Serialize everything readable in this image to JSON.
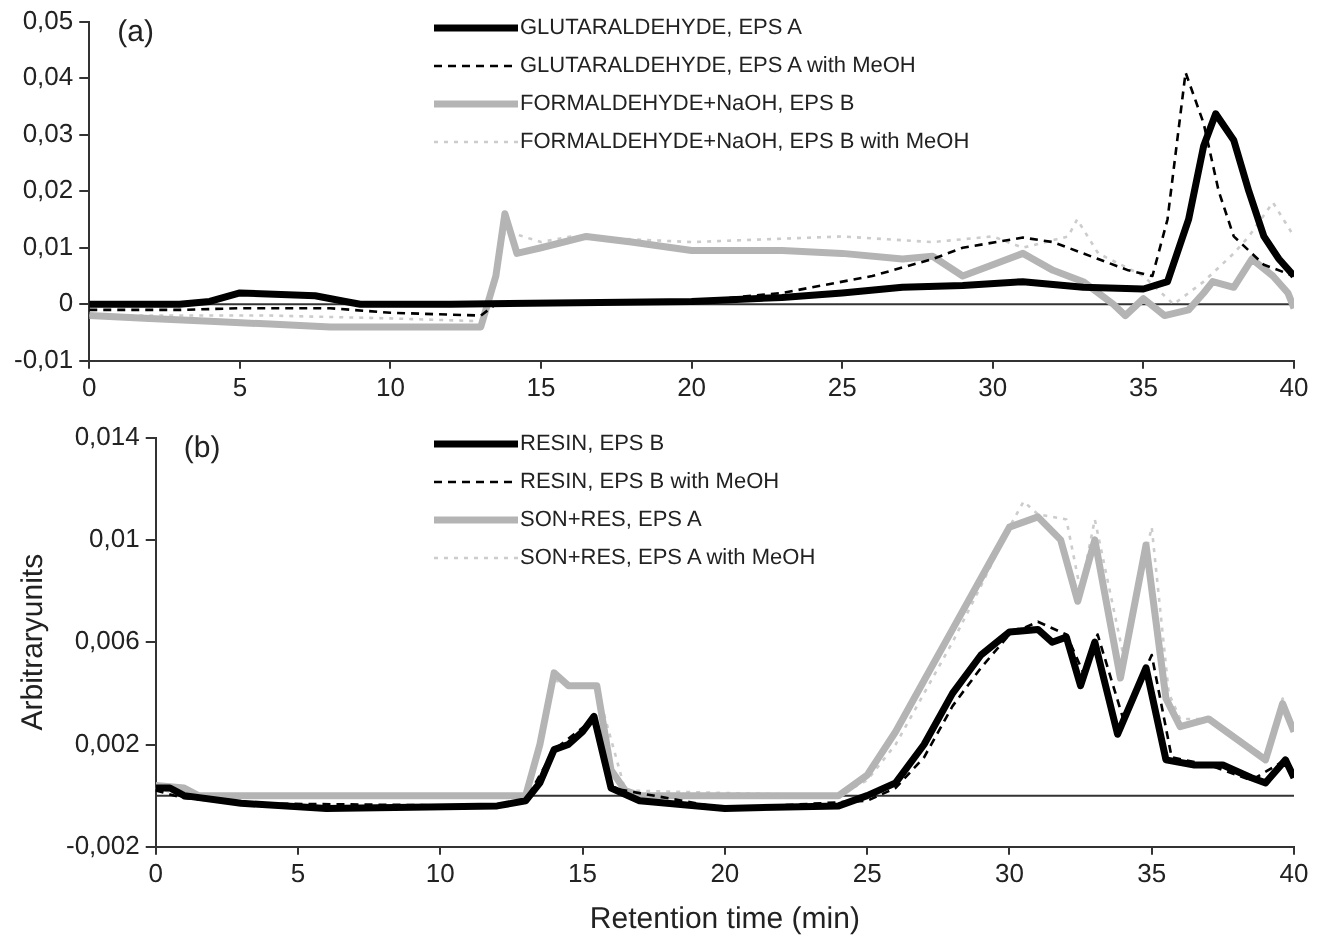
{
  "chart_data": [
    {
      "type": "line",
      "title": "(a)",
      "xlim": [
        0,
        40
      ],
      "xticks": [
        0,
        5,
        10,
        15,
        20,
        25,
        30,
        35,
        40
      ],
      "ylim": [
        -0.01,
        0.05
      ],
      "yticks": [
        {
          "value": 0.05,
          "label": "0,05"
        },
        {
          "value": 0.04,
          "label": "0,04"
        },
        {
          "value": 0.03,
          "label": "0,03"
        },
        {
          "value": 0.02,
          "label": "0,02"
        },
        {
          "value": 0.01,
          "label": "0,01"
        },
        0,
        {
          "value": -0.01,
          "label": "-0,01"
        }
      ],
      "grid": false,
      "legend": "top",
      "marker": "none",
      "ref_lines": [
        {
          "axis": "y",
          "value": 0,
          "color": "#333333"
        }
      ],
      "series": [
        {
          "name": "GLUTARALDEHYDE, EPS A",
          "color": "#000000",
          "line_style": "solid",
          "x": [
            0,
            3,
            4,
            5,
            7.5,
            8.5,
            9,
            12,
            20,
            23,
            25,
            27,
            29,
            31,
            32,
            33,
            35,
            35.8,
            36.5,
            37,
            37.4,
            38,
            38.5,
            39,
            39.5,
            40
          ],
          "values": [
            0,
            0,
            0.0005,
            0.002,
            0.0015,
            0.0005,
            0,
            0,
            0.0005,
            0.0012,
            0.002,
            0.003,
            0.0033,
            0.004,
            0.0035,
            0.003,
            0.0027,
            0.004,
            0.015,
            0.028,
            0.0337,
            0.029,
            0.02,
            0.012,
            0.008,
            0.005
          ]
        },
        {
          "name": "GLUTARALDEHYDE, EPS A with MeOH",
          "color": "#000000",
          "line_style": "dashed",
          "x": [
            0,
            3,
            5,
            8,
            10,
            13,
            13.5,
            15,
            20,
            23,
            26,
            28,
            29,
            31,
            32,
            33.5,
            34.5,
            35.3,
            35.8,
            36.4,
            37,
            37.5,
            38,
            39,
            40
          ],
          "values": [
            -0.001,
            -0.001,
            -0.0007,
            -0.0007,
            -0.0015,
            -0.002,
            0,
            0,
            0.0005,
            0.002,
            0.005,
            0.008,
            0.01,
            0.0118,
            0.011,
            0.008,
            0.006,
            0.005,
            0.015,
            0.041,
            0.032,
            0.02,
            0.012,
            0.007,
            0.005
          ]
        },
        {
          "name": "FORMALDEHYDE+NaOH, EPS B",
          "color": "#b4b4b4",
          "line_style": "solid",
          "x": [
            0,
            2,
            4,
            6,
            8,
            13,
            13.5,
            13.8,
            14.2,
            15,
            16.5,
            18,
            20,
            23,
            25,
            27,
            28,
            29,
            30,
            31,
            32,
            33,
            34,
            34.4,
            35,
            35.7,
            36.5,
            37,
            37.3,
            38,
            38.6,
            39.3,
            39.8,
            40
          ],
          "values": [
            -0.002,
            -0.0025,
            -0.003,
            -0.0035,
            -0.004,
            -0.004,
            0.005,
            0.016,
            0.009,
            0.01,
            0.012,
            0.011,
            0.0095,
            0.0095,
            0.009,
            0.008,
            0.0085,
            0.005,
            0.007,
            0.009,
            0.006,
            0.004,
            0,
            -0.002,
            0.001,
            -0.002,
            -0.001,
            0.002,
            0.004,
            0.003,
            0.008,
            0.005,
            0.002,
            -0.0007
          ]
        },
        {
          "name": "FORMALDEHYDE+NaOH, EPS B with MeOH",
          "color": "#cccccc",
          "line_style": "dotted",
          "x": [
            0,
            3,
            6,
            10,
            13,
            13.5,
            13.8,
            15,
            16,
            20,
            25,
            28,
            30,
            31,
            32.5,
            32.8,
            33.5,
            35,
            36,
            37,
            38,
            38.5,
            39.3,
            40
          ],
          "values": [
            -0.002,
            -0.002,
            -0.002,
            -0.0025,
            -0.003,
            0.005,
            0.013,
            0.011,
            0.012,
            0.011,
            0.012,
            0.011,
            0.012,
            0.01,
            0.012,
            0.015,
            0.009,
            0.005,
            0,
            0.004,
            0.009,
            0.012,
            0.018,
            0.012
          ]
        }
      ]
    },
    {
      "type": "line",
      "title": "(b)",
      "xlabel": "Retention time (min)",
      "ylabel": "Arbitraryunits",
      "xlim": [
        0,
        40
      ],
      "xticks": [
        0,
        5,
        10,
        15,
        20,
        25,
        30,
        35,
        40
      ],
      "ylim": [
        -0.002,
        0.014
      ],
      "yticks": [
        {
          "value": 0.014,
          "label": "0,014"
        },
        {
          "value": 0.01,
          "label": "0,01"
        },
        {
          "value": 0.006,
          "label": "0,006"
        },
        {
          "value": 0.002,
          "label": "0,002"
        },
        {
          "value": -0.002,
          "label": "-0,002"
        }
      ],
      "grid": false,
      "legend": "top",
      "marker": "none",
      "ref_lines": [
        {
          "axis": "y",
          "value": 0,
          "color": "#333333"
        }
      ],
      "series": [
        {
          "name": "RESIN, EPS B",
          "color": "#000000",
          "line_style": "solid",
          "x": [
            0,
            0.5,
            1,
            3,
            6,
            12,
            13,
            13.5,
            14,
            14.5,
            15,
            15.4,
            16,
            17,
            20,
            24,
            25,
            26,
            27,
            28,
            29,
            30,
            31,
            31.5,
            32,
            32.5,
            33,
            33.8,
            34.8,
            35.5,
            36.5,
            37.5,
            38.5,
            39,
            39.7,
            40
          ],
          "values": [
            0.0003,
            0.0003,
            0,
            -0.0003,
            -0.0005,
            -0.0004,
            -0.0002,
            0.0005,
            0.0018,
            0.002,
            0.0025,
            0.0031,
            0.0003,
            -0.0002,
            -0.0005,
            -0.0004,
            0,
            0.0005,
            0.002,
            0.004,
            0.0055,
            0.0064,
            0.0065,
            0.006,
            0.0062,
            0.0043,
            0.006,
            0.0024,
            0.005,
            0.0014,
            0.0012,
            0.0012,
            0.0007,
            0.0005,
            0.0014,
            0.0007
          ]
        },
        {
          "name": "RESIN, EPS B with MeOH",
          "color": "#000000",
          "line_style": "dashed",
          "x": [
            0,
            1,
            3,
            12,
            13,
            14,
            15.4,
            16,
            20,
            25,
            26,
            27,
            28,
            29,
            30,
            31,
            32,
            32.6,
            33.1,
            34,
            35,
            35.7,
            37,
            38.5,
            39.7,
            40
          ],
          "values": [
            0.0002,
            -0.0001,
            -0.0003,
            -0.0004,
            -0.0002,
            0.0018,
            0.003,
            0.0003,
            -0.0005,
            -0.0002,
            0.0003,
            0.0015,
            0.0035,
            0.005,
            0.0063,
            0.0068,
            0.0063,
            0.0048,
            0.0063,
            0.003,
            0.0055,
            0.0015,
            0.0012,
            0.0006,
            0.0014,
            0.0008
          ]
        },
        {
          "name": "SON+RES, EPS A",
          "color": "#b4b4b4",
          "line_style": "solid",
          "x": [
            0,
            1,
            1.5,
            13,
            13.5,
            14,
            14.5,
            15,
            15.5,
            16,
            16.5,
            17,
            24,
            25,
            26,
            27,
            28,
            29,
            30,
            31,
            31.8,
            32.4,
            33,
            33.9,
            34.8,
            35.5,
            36,
            37,
            38,
            39,
            39.6,
            40
          ],
          "values": [
            0.0004,
            0.0003,
            0,
            0,
            0.002,
            0.0048,
            0.0043,
            0.0043,
            0.0043,
            0.001,
            0.0002,
            0,
            0,
            0.0008,
            0.0025,
            0.0045,
            0.0065,
            0.0085,
            0.0105,
            0.0109,
            0.01,
            0.0076,
            0.01,
            0.0046,
            0.0098,
            0.0038,
            0.0027,
            0.003,
            0.0022,
            0.0014,
            0.0036,
            0.0025
          ]
        },
        {
          "name": "SON+RES, EPS A with MeOH",
          "color": "#cccccc",
          "line_style": "dotted",
          "x": [
            0,
            1,
            13,
            14,
            15.5,
            16.5,
            24,
            25,
            26,
            27,
            28,
            29,
            30,
            30.5,
            31,
            32,
            32.5,
            33,
            34,
            35,
            35.6,
            36,
            37,
            38,
            39,
            39.6,
            40
          ],
          "values": [
            0.0003,
            0,
            0,
            0.0045,
            0.0042,
            0.0002,
            0,
            0.0006,
            0.002,
            0.004,
            0.006,
            0.0082,
            0.0105,
            0.0115,
            0.011,
            0.0108,
            0.008,
            0.0108,
            0.0055,
            0.0105,
            0.004,
            0.003,
            0.003,
            0.0023,
            0.0015,
            0.0038,
            0.0026
          ]
        }
      ]
    }
  ]
}
